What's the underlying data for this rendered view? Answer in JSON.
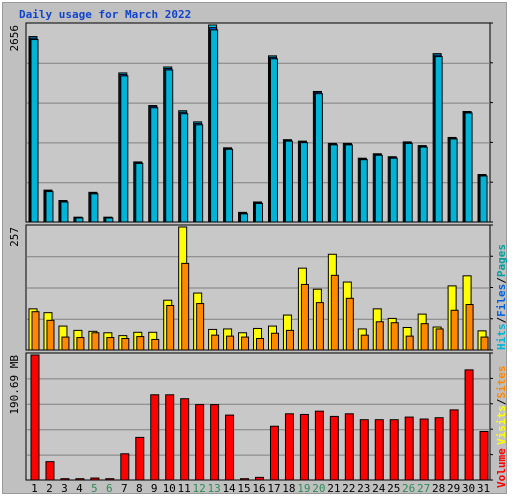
{
  "title": "Daily usage for March 2022",
  "colors": {
    "hits": "#00c8e8",
    "files": "#0060e0",
    "pages": "#00b4d8",
    "visits": "#ffff00",
    "sites": "#ff8800",
    "volume": "#ff0000",
    "background": "#c0c0c0",
    "plot_background": "#c8c8c8",
    "grid": "#808080",
    "title_text": "#1144cc",
    "weekend_label": "#2e8b57"
  },
  "chart_data": [
    {
      "type": "bar",
      "name": "hits-files-pages",
      "categories": [
        "1",
        "2",
        "3",
        "4",
        "5",
        "6",
        "7",
        "8",
        "9",
        "10",
        "11",
        "12",
        "13",
        "14",
        "15",
        "16",
        "17",
        "18",
        "19",
        "20",
        "21",
        "22",
        "23",
        "24",
        "25",
        "26",
        "27",
        "28",
        "29",
        "30",
        "31"
      ],
      "ylabel": "2656",
      "ylim": [
        0,
        2656
      ],
      "series": [
        {
          "name": "Hits",
          "values": [
            2500,
            430,
            290,
            65,
            400,
            65,
            2010,
            810,
            1570,
            2090,
            1500,
            1350,
            2656,
            1000,
            130,
            270,
            2240,
            1110,
            1090,
            1760,
            1060,
            1060,
            860,
            920,
            880,
            1080,
            1030,
            2270,
            1140,
            1490,
            640
          ]
        },
        {
          "name": "Files",
          "values": [
            2480,
            420,
            280,
            60,
            390,
            60,
            1990,
            800,
            1560,
            2070,
            1480,
            1330,
            2620,
            990,
            120,
            260,
            2220,
            1100,
            1080,
            1750,
            1050,
            1050,
            850,
            910,
            870,
            1070,
            1020,
            2250,
            1130,
            1480,
            630
          ]
        },
        {
          "name": "Pages",
          "values": [
            2460,
            410,
            270,
            55,
            380,
            55,
            1970,
            790,
            1540,
            2050,
            1460,
            1310,
            2590,
            980,
            110,
            250,
            2200,
            1090,
            1070,
            1730,
            1040,
            1040,
            840,
            900,
            860,
            1060,
            1010,
            2230,
            1120,
            1470,
            620
          ]
        }
      ]
    },
    {
      "type": "bar",
      "name": "visits-sites",
      "categories": [
        "1",
        "2",
        "3",
        "4",
        "5",
        "6",
        "7",
        "8",
        "9",
        "10",
        "11",
        "12",
        "13",
        "14",
        "15",
        "16",
        "17",
        "18",
        "19",
        "20",
        "21",
        "22",
        "23",
        "24",
        "25",
        "26",
        "27",
        "28",
        "29",
        "30",
        "31"
      ],
      "ylabel": "257",
      "ylim": [
        0,
        257
      ],
      "series": [
        {
          "name": "Visits",
          "values": [
            86,
            78,
            50,
            41,
            39,
            36,
            30,
            37,
            37,
            104,
            257,
            119,
            43,
            44,
            36,
            45,
            50,
            73,
            171,
            127,
            200,
            142,
            44,
            86,
            66,
            47,
            75,
            48,
            134,
            155,
            40
          ]
        },
        {
          "name": "Sites",
          "values": [
            80,
            62,
            27,
            26,
            36,
            26,
            24,
            28,
            22,
            93,
            181,
            97,
            31,
            29,
            27,
            24,
            35,
            41,
            137,
            99,
            156,
            108,
            31,
            59,
            57,
            29,
            55,
            44,
            83,
            95,
            27
          ]
        }
      ]
    },
    {
      "type": "bar",
      "name": "volume",
      "categories": [
        "1",
        "2",
        "3",
        "4",
        "5",
        "6",
        "7",
        "8",
        "9",
        "10",
        "11",
        "12",
        "13",
        "14",
        "15",
        "16",
        "17",
        "18",
        "19",
        "20",
        "21",
        "22",
        "23",
        "24",
        "25",
        "26",
        "27",
        "28",
        "29",
        "30",
        "31"
      ],
      "ylabel": "190.69 MB",
      "ylim": [
        0,
        190.69
      ],
      "series": [
        {
          "name": "Volume",
          "values": [
            190.69,
            28,
            2,
            2,
            3,
            2,
            40,
            65,
            130,
            130,
            124,
            115,
            115,
            99,
            2,
            4,
            82,
            101,
            100,
            105,
            97,
            101,
            92,
            92,
            92,
            96,
            93,
            95,
            107,
            168,
            74
          ]
        }
      ]
    }
  ],
  "right_legend": {
    "top": [
      "Hits",
      "/",
      "Files",
      "/",
      "Pages"
    ],
    "middle": [
      "Visits",
      "/",
      "Sites"
    ],
    "bottom": [
      "Volume"
    ]
  },
  "x_labels": [
    "1",
    "2",
    "3",
    "4",
    "5",
    "6",
    "7",
    "8",
    "9",
    "10",
    "11",
    "12",
    "13",
    "14",
    "15",
    "16",
    "17",
    "18",
    "19",
    "20",
    "21",
    "22",
    "23",
    "24",
    "25",
    "26",
    "27",
    "28",
    "29",
    "30",
    "31"
  ],
  "weekend_days": [
    5,
    6,
    12,
    13,
    19,
    20,
    26,
    27
  ]
}
